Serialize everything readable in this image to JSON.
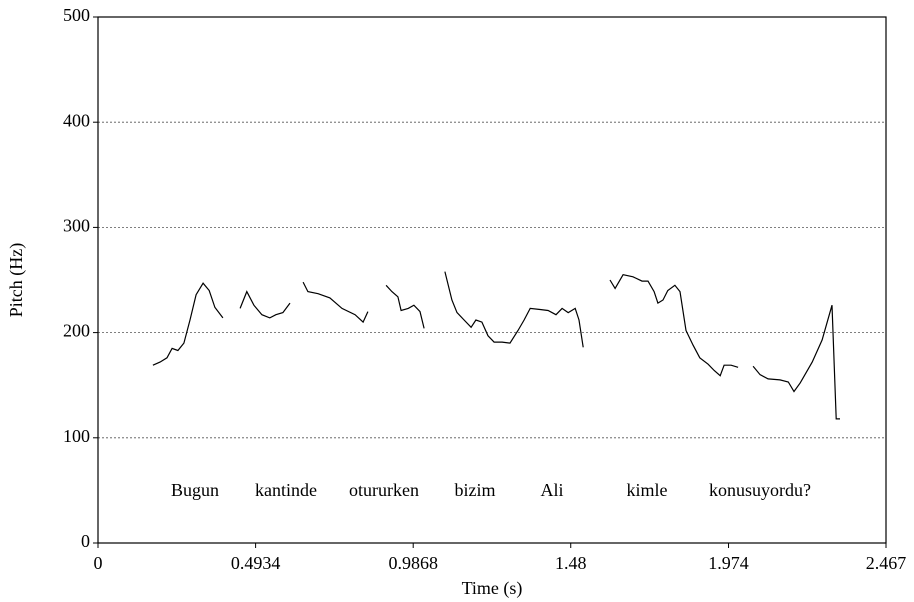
{
  "chart_data": {
    "type": "line",
    "x_label": "Time (s)",
    "y_label": "Pitch (Hz)",
    "xlim": [
      0,
      2.467
    ],
    "xticks": [
      0,
      0.4934,
      0.9868,
      1.48,
      1.974,
      2.467
    ],
    "ylim": [
      0,
      500
    ],
    "yticks": [
      0,
      100,
      200,
      300,
      400,
      500
    ],
    "grid": true,
    "color": "#000000",
    "annotations": [
      "Bugun",
      "kantinde",
      "otururken",
      "bizim",
      "Ali",
      "kimle",
      "konusuyordu?"
    ],
    "x": [
      0.172,
      0.194,
      0.216,
      0.232,
      0.25,
      0.269,
      0.288,
      0.307,
      0.329,
      0.348,
      0.366,
      0.391,
      null,
      0.445,
      0.466,
      0.488,
      0.513,
      0.538,
      0.557,
      0.579,
      0.601,
      null,
      0.642,
      0.657,
      0.689,
      0.726,
      0.764,
      0.805,
      0.83,
      0.845,
      null,
      0.902,
      0.92,
      0.939,
      0.949,
      0.971,
      0.989,
      1.008,
      1.021,
      null,
      1.086,
      1.108,
      1.124,
      1.146,
      1.168,
      1.183,
      1.202,
      1.221,
      1.24,
      1.265,
      1.29,
      1.315,
      1.334,
      1.353,
      1.384,
      1.409,
      1.434,
      1.453,
      1.472,
      1.494,
      1.506,
      1.519,
      null,
      1.603,
      1.619,
      1.644,
      1.675,
      1.703,
      1.722,
      1.741,
      1.753,
      1.769,
      1.784,
      1.806,
      1.822,
      1.841,
      1.863,
      1.884,
      1.91,
      1.929,
      1.948,
      1.96,
      1.982,
      2.004,
      null,
      2.051,
      2.073,
      2.098,
      2.135,
      2.161,
      2.179,
      2.198,
      2.236,
      2.267,
      2.298,
      2.311,
      2.323
    ],
    "values": [
      169,
      172,
      176,
      185,
      183,
      190,
      212,
      236,
      247,
      240,
      224,
      214,
      null,
      223,
      239,
      226,
      217,
      214,
      217,
      219,
      228,
      null,
      248,
      239,
      237,
      233,
      223,
      217,
      210,
      220,
      null,
      245,
      239,
      234,
      221,
      223,
      226,
      220,
      204,
      null,
      258,
      231,
      219,
      212,
      205,
      212,
      210,
      197,
      191,
      191,
      190,
      202,
      212,
      223,
      222,
      221,
      217,
      223,
      219,
      223,
      212,
      186,
      null,
      250,
      242,
      255,
      253,
      249,
      249,
      239,
      228,
      231,
      240,
      245,
      239,
      202,
      188,
      176,
      170,
      164,
      159,
      169,
      169,
      167,
      null,
      168,
      160,
      156,
      155,
      153,
      144,
      152,
      172,
      193,
      226,
      118,
      118
    ]
  }
}
